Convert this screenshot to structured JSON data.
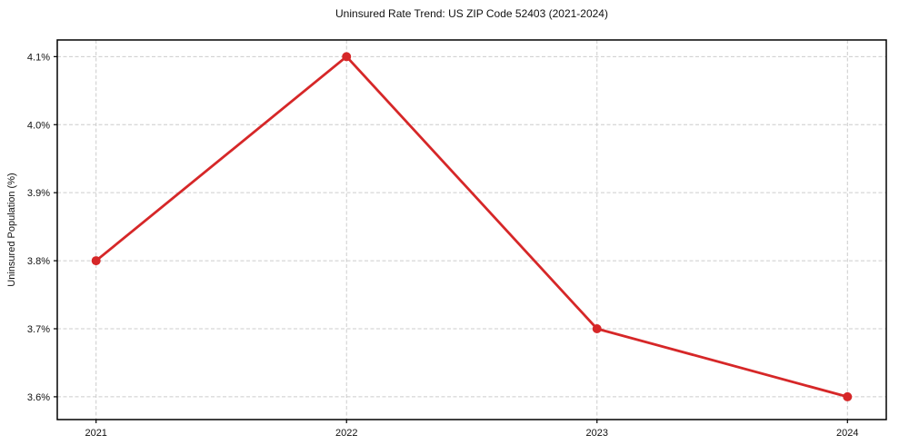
{
  "chart_data": {
    "type": "line",
    "title": "Uninsured Rate Trend: US ZIP Code 52403 (2021-2024)",
    "xlabel": "",
    "ylabel": "Uninsured Population (%)",
    "x": [
      2021,
      2022,
      2023,
      2024
    ],
    "x_tick_labels": [
      "2021",
      "2022",
      "2023",
      "2024"
    ],
    "series": [
      {
        "name": "Uninsured Population (%)",
        "values": [
          3.8,
          4.1,
          3.7,
          3.6
        ]
      }
    ],
    "y_ticks": [
      3.6,
      3.7,
      3.8,
      3.9,
      4.0,
      4.1
    ],
    "y_tick_labels": [
      "3.6%",
      "3.7%",
      "3.8%",
      "3.9%",
      "4.0%",
      "4.1%"
    ],
    "xlim": [
      2020.845,
      2024.155
    ],
    "ylim": [
      3.5665,
      4.1245
    ],
    "grid": true,
    "grid_style": "dashed",
    "legend": false,
    "legend_position": "none",
    "line_color": "#d62728",
    "marker_color": "#d62728",
    "grid_color": "#cccccc",
    "spine_color": "#000000",
    "text_color": "#111111",
    "background_color": "#ffffff"
  }
}
